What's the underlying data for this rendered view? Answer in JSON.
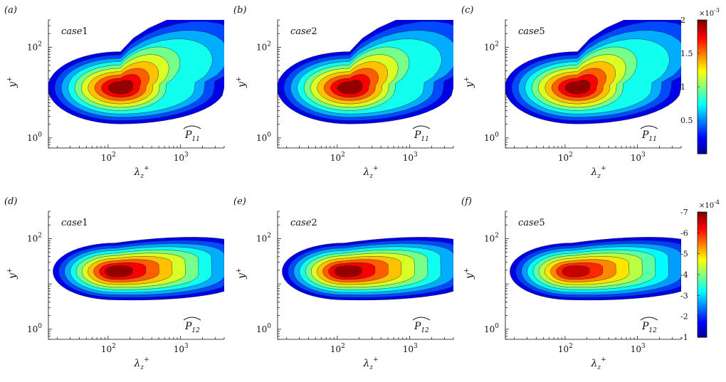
{
  "chart_data": [
    {
      "type": "heatmap",
      "panel_label": "(a)",
      "case_label": "case1",
      "quantity_label": "P11",
      "xlabel": "λz+",
      "ylabel": "y+",
      "x_scale": "log",
      "y_scale": "log",
      "x_ticks": [
        "10^2",
        "10^3"
      ],
      "y_ticks": [
        "10^0",
        "10^2"
      ],
      "xlim": [
        15,
        4000
      ],
      "ylim": [
        0.6,
        400
      ],
      "peak": {
        "lambda_z": 120,
        "y": 12,
        "value": 0.002
      }
    },
    {
      "type": "heatmap",
      "panel_label": "(b)",
      "case_label": "case2",
      "quantity_label": "P11",
      "xlabel": "λz+",
      "ylabel": "y+",
      "x_scale": "log",
      "y_scale": "log",
      "x_ticks": [
        "10^2",
        "10^3"
      ],
      "y_ticks": [
        "10^0",
        "10^2"
      ],
      "xlim": [
        15,
        4000
      ],
      "ylim": [
        0.6,
        400
      ],
      "peak": {
        "lambda_z": 120,
        "y": 12,
        "value": 0.002
      }
    },
    {
      "type": "heatmap",
      "panel_label": "(c)",
      "case_label": "case5",
      "quantity_label": "P11",
      "xlabel": "λz+",
      "ylabel": "y+",
      "x_scale": "log",
      "y_scale": "log",
      "x_ticks": [
        "10^2",
        "10^3"
      ],
      "y_ticks": [
        "10^0",
        "10^2"
      ],
      "xlim": [
        15,
        4000
      ],
      "ylim": [
        0.6,
        400
      ],
      "peak": {
        "lambda_z": 120,
        "y": 12,
        "value": 0.0019
      }
    },
    {
      "type": "heatmap",
      "panel_label": "(d)",
      "case_label": "case1",
      "quantity_label": "P12",
      "xlabel": "λz+",
      "ylabel": "y+",
      "x_scale": "log",
      "y_scale": "log",
      "x_ticks": [
        "10^2",
        "10^3"
      ],
      "y_ticks": [
        "10^0",
        "10^2"
      ],
      "xlim": [
        15,
        4000
      ],
      "ylim": [
        0.6,
        400
      ],
      "peak": {
        "lambda_z": 110,
        "y": 20,
        "value": -0.0007
      }
    },
    {
      "type": "heatmap",
      "panel_label": "(e)",
      "case_label": "case2",
      "quantity_label": "P12",
      "xlabel": "λz+",
      "ylabel": "y+",
      "x_scale": "log",
      "y_scale": "log",
      "x_ticks": [
        "10^2",
        "10^3"
      ],
      "y_ticks": [
        "10^0",
        "10^2"
      ],
      "xlim": [
        15,
        4000
      ],
      "ylim": [
        0.6,
        400
      ],
      "peak": {
        "lambda_z": 110,
        "y": 20,
        "value": -0.0007
      }
    },
    {
      "type": "heatmap",
      "panel_label": "(f)",
      "case_label": "case5",
      "quantity_label": "P12",
      "xlabel": "λz+",
      "ylabel": "y+",
      "x_scale": "log",
      "y_scale": "log",
      "x_ticks": [
        "10^2",
        "10^3"
      ],
      "y_ticks": [
        "10^0",
        "10^2"
      ],
      "xlim": [
        15,
        4000
      ],
      "ylim": [
        0.6,
        400
      ],
      "peak": {
        "lambda_z": 110,
        "y": 20,
        "value": -0.0006
      }
    }
  ],
  "colorbars": [
    {
      "exponent": "×10-3",
      "ticks": [
        "2",
        "1.5",
        "1",
        "0.5"
      ],
      "range": [
        0.0001,
        0.002
      ]
    },
    {
      "exponent": "×10-4",
      "ticks": [
        "-7",
        "-6",
        "-5",
        "-4",
        "-3",
        "-2",
        "-1"
      ],
      "range": [
        -0.0007,
        -0.0001
      ]
    }
  ],
  "colormap": [
    "#00008f",
    "#0000ff",
    "#0080ff",
    "#00ffff",
    "#80ff80",
    "#ffff00",
    "#ff8000",
    "#ff0000",
    "#800000"
  ]
}
